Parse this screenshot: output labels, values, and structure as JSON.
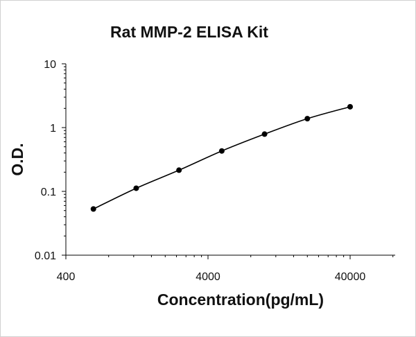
{
  "chart_data": {
    "type": "scatter",
    "title": "Rat MMP-2 ELISA Kit",
    "xlabel": "Concentration(pg/mL)",
    "ylabel": "O.D.",
    "x_scale": "log",
    "y_scale": "log",
    "xlim": [
      400,
      100000
    ],
    "ylim": [
      0.01,
      10
    ],
    "x_ticks": [
      "400",
      "4000",
      "40000"
    ],
    "y_ticks": [
      "10",
      "1",
      "0.1",
      "0.01"
    ],
    "grid": false,
    "legend": "none",
    "trendline": true,
    "series": [
      {
        "x": [
          625,
          1250,
          2500,
          5000,
          10000,
          20000,
          40000
        ],
        "y": [
          0.053,
          0.112,
          0.215,
          0.43,
          0.79,
          1.38,
          2.12
        ]
      }
    ],
    "colors": {
      "marker": "#000000",
      "line": "#000000",
      "axis": "#000000"
    }
  }
}
